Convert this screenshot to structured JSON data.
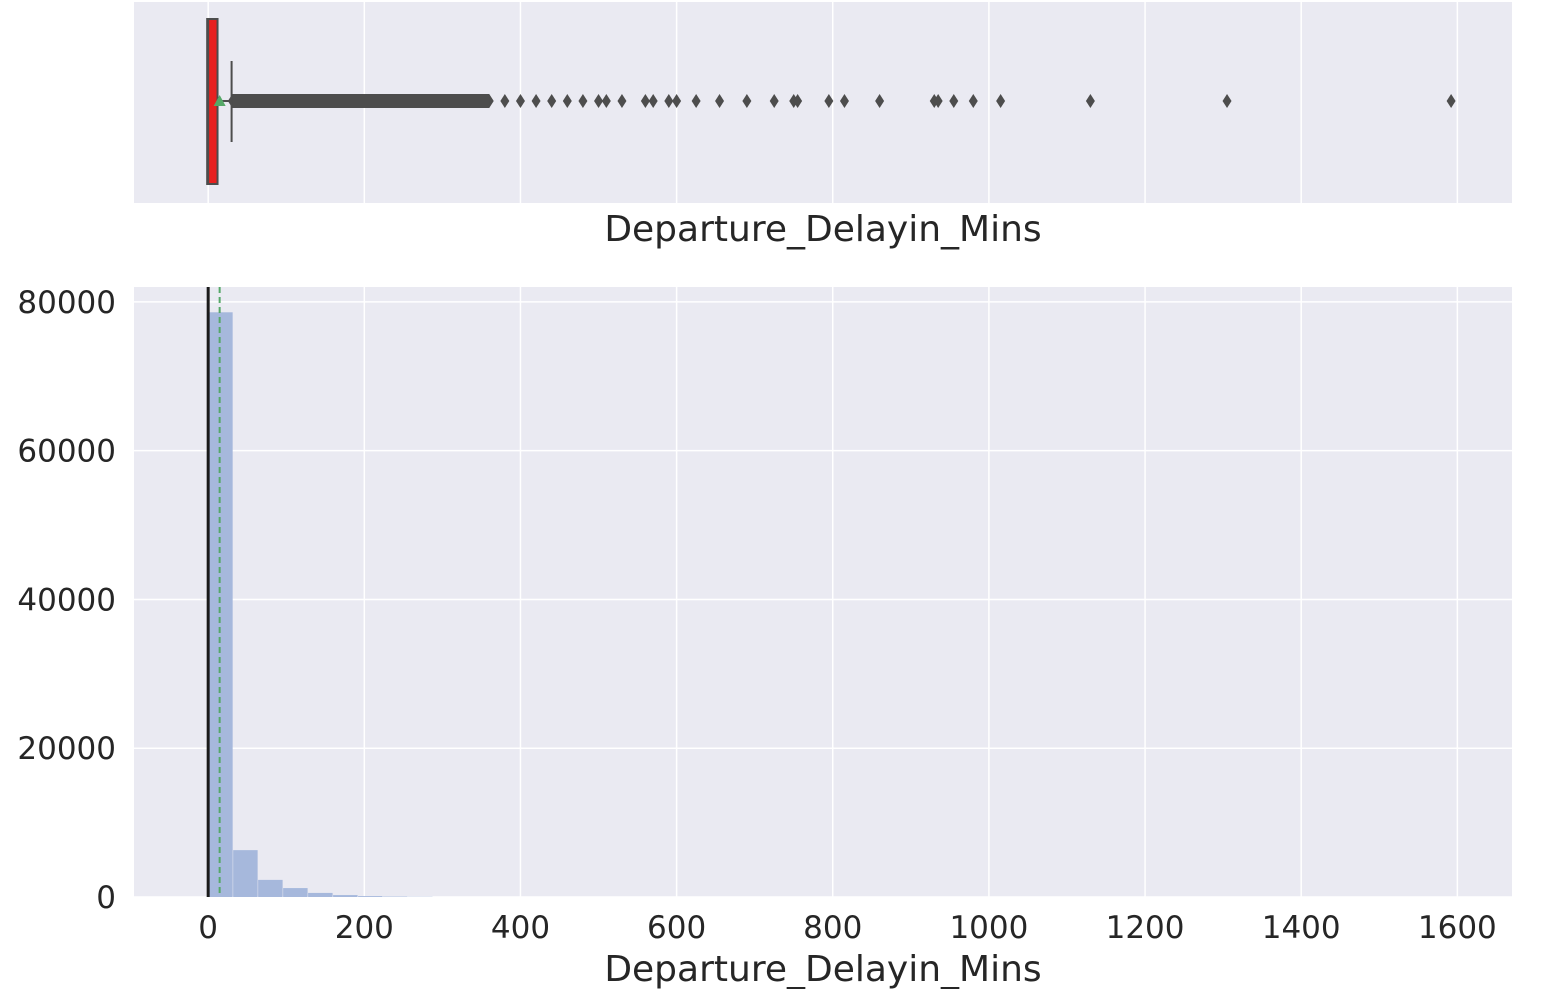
{
  "chart_data": [
    {
      "type": "boxplot",
      "xlabel": "Departure_Delayin_Mins",
      "ylabel": "",
      "grid": true,
      "xlim": [
        -95,
        1670
      ],
      "box": {
        "q1": 0,
        "median": 0,
        "q3": 12,
        "whisker_low": 0,
        "whisker_high": 30,
        "mean": 14.7
      },
      "outliers": [
        31,
        35,
        40,
        45,
        50,
        55,
        60,
        70,
        80,
        90,
        100,
        120,
        140,
        160,
        180,
        200,
        220,
        240,
        260,
        280,
        300,
        320,
        340,
        360,
        380,
        400,
        420,
        440,
        460,
        480,
        500,
        510,
        530,
        560,
        570,
        590,
        600,
        625,
        655,
        690,
        725,
        750,
        755,
        795,
        815,
        860,
        930,
        935,
        955,
        980,
        1015,
        1130,
        1305,
        1592
      ],
      "colors": {
        "box_fill": "#e8201f",
        "box_edge": "#4d4d4d",
        "mean_marker": "#55a868",
        "flier": "#4d4d4d"
      }
    },
    {
      "type": "histogram",
      "xlabel": "Departure_Delayin_Mins",
      "ylabel": "",
      "grid": true,
      "xlim": [
        -95,
        1670
      ],
      "ylim": [
        0,
        82000
      ],
      "xticks": [
        "0",
        "200",
        "400",
        "600",
        "800",
        "1000",
        "1200",
        "1400",
        "1600"
      ],
      "yticks": [
        "0",
        "20000",
        "40000",
        "60000",
        "80000"
      ],
      "bins": [
        {
          "x0": 0,
          "x1": 32,
          "count": 78600
        },
        {
          "x0": 32,
          "x1": 64,
          "count": 6300
        },
        {
          "x0": 64,
          "x1": 96,
          "count": 2300
        },
        {
          "x0": 96,
          "x1": 128,
          "count": 1200
        },
        {
          "x0": 128,
          "x1": 160,
          "count": 550
        },
        {
          "x0": 160,
          "x1": 192,
          "count": 260
        },
        {
          "x0": 192,
          "x1": 224,
          "count": 120
        },
        {
          "x0": 224,
          "x1": 256,
          "count": 60
        },
        {
          "x0": 256,
          "x1": 288,
          "count": 30
        }
      ],
      "mean_line": 14.7,
      "median_line": 0,
      "colors": {
        "bar": "#a6b8dc",
        "mean_line": "#55a868",
        "median_line": "#1a1a1a",
        "background": "#eaeaf2",
        "grid": "#ffffff"
      }
    }
  ]
}
